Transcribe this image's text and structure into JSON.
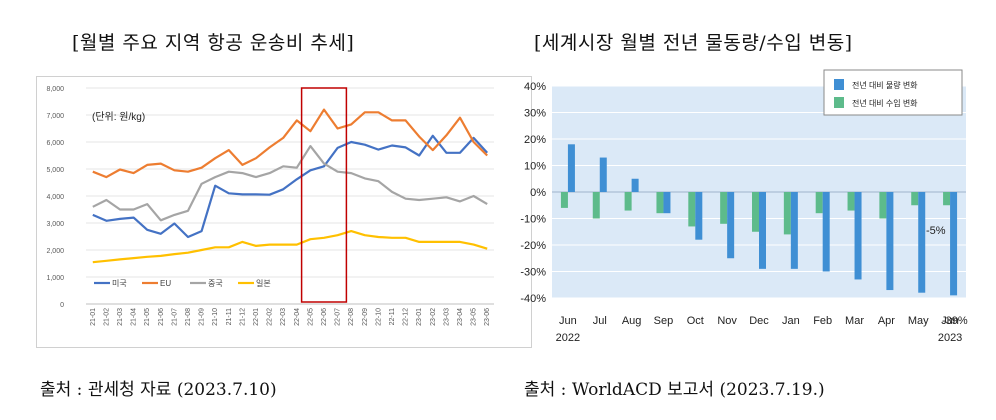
{
  "left_panel": {
    "title": "[월별 주요 지역 항공 운송비 추세]",
    "source": "출처 : 관세청 자료 (2023.7.10)"
  },
  "right_panel": {
    "title": "[세계시장 월별 전년 물동량/수입 변동]",
    "source": "출처 : WorldACD 보고서 (2023.7.19.)"
  },
  "colors": {
    "us": "#4472c4",
    "eu": "#ed7d31",
    "china": "#a5a5a5",
    "japan": "#ffc000",
    "volume": "#3f8fd4",
    "import": "#5dbb8b",
    "highlight": "#c00000",
    "plot_bg": "#dbe9f7"
  },
  "chart_data": [
    {
      "type": "line",
      "annotation": "(단위: 원/kg)",
      "x": [
        "21-01",
        "21-02",
        "21-03",
        "21-04",
        "21-05",
        "21-06",
        "21-07",
        "21-08",
        "21-09",
        "21-10",
        "21-11",
        "21-12",
        "22-01",
        "22-02",
        "22-03",
        "22-04",
        "22-05",
        "22-06",
        "22-07",
        "22-08",
        "22-09",
        "22-10",
        "22-11",
        "22-12",
        "23-01",
        "23-02",
        "23-03",
        "23-04",
        "23-05",
        "23-06"
      ],
      "ylim": [
        0,
        8000
      ],
      "yticks": [
        "0",
        "1,000",
        "2,000",
        "3,000",
        "4,000",
        "5,000",
        "6,000",
        "7,000",
        "8,000"
      ],
      "grid": true,
      "legend_position": "bottom-left",
      "highlight_range": [
        "22-05",
        "22-07"
      ],
      "series": [
        {
          "name": "미국",
          "color": "#4472c4",
          "values": [
            3300,
            3080,
            3150,
            3200,
            2750,
            2600,
            2980,
            2480,
            2700,
            4380,
            4100,
            4060,
            4060,
            4050,
            4250,
            4620,
            4950,
            5100,
            5780,
            6000,
            5900,
            5720,
            5870,
            5800,
            5500,
            6230,
            5600,
            5600,
            6150,
            5600
          ]
        },
        {
          "name": "EU",
          "color": "#ed7d31",
          "values": [
            4900,
            4700,
            4980,
            4850,
            5150,
            5200,
            4950,
            4900,
            5050,
            5400,
            5700,
            5150,
            5400,
            5800,
            6150,
            6800,
            6400,
            7200,
            6500,
            6650,
            7100,
            7100,
            6800,
            6800,
            6200,
            5700,
            6250,
            6900,
            6000,
            5500
          ]
        },
        {
          "name": "중국",
          "color": "#a5a5a5",
          "values": [
            3600,
            3850,
            3500,
            3500,
            3700,
            3100,
            3300,
            3450,
            4450,
            4700,
            4900,
            4850,
            4700,
            4850,
            5100,
            5050,
            5850,
            5200,
            4900,
            4850,
            4650,
            4550,
            4150,
            3900,
            3850,
            3900,
            3950,
            3800,
            4000,
            3700
          ]
        },
        {
          "name": "일본",
          "color": "#ffc000",
          "values": [
            1550,
            1600,
            1650,
            1700,
            1750,
            1780,
            1850,
            1900,
            2000,
            2100,
            2100,
            2300,
            2150,
            2200,
            2200,
            2200,
            2400,
            2450,
            2550,
            2700,
            2550,
            2480,
            2450,
            2450,
            2300,
            2300,
            2300,
            2300,
            2200,
            2050
          ]
        }
      ]
    },
    {
      "type": "bar",
      "categories": [
        "Jun",
        "Jul",
        "Aug",
        "Sep",
        "Oct",
        "Nov",
        "Dec",
        "Jan",
        "Feb",
        "Mar",
        "Apr",
        "May",
        "Jun"
      ],
      "year_labels": {
        "first": "2022",
        "last": "2023"
      },
      "ylim": [
        -40,
        40
      ],
      "yticks": [
        "40%",
        "30%",
        "20%",
        "10%",
        "0%",
        "-10%",
        "-20%",
        "-30%",
        "-40%"
      ],
      "grid": true,
      "legend_position": "top-right",
      "data_labels": {
        "neg5": "-5%",
        "neg39": "-39%"
      },
      "series": [
        {
          "name": "전년 대비 물량 변화",
          "color": "#3f8fd4",
          "values": [
            18,
            13,
            5,
            -8,
            -18,
            -25,
            -29,
            -29,
            -30,
            -33,
            -37,
            -38,
            -39
          ]
        },
        {
          "name": "전년 대비 수입 변화",
          "color": "#5dbb8b",
          "values": [
            -6,
            -10,
            -7,
            -8,
            -13,
            -12,
            -15,
            -16,
            -8,
            -7,
            -10,
            -5,
            -5
          ]
        }
      ]
    }
  ]
}
